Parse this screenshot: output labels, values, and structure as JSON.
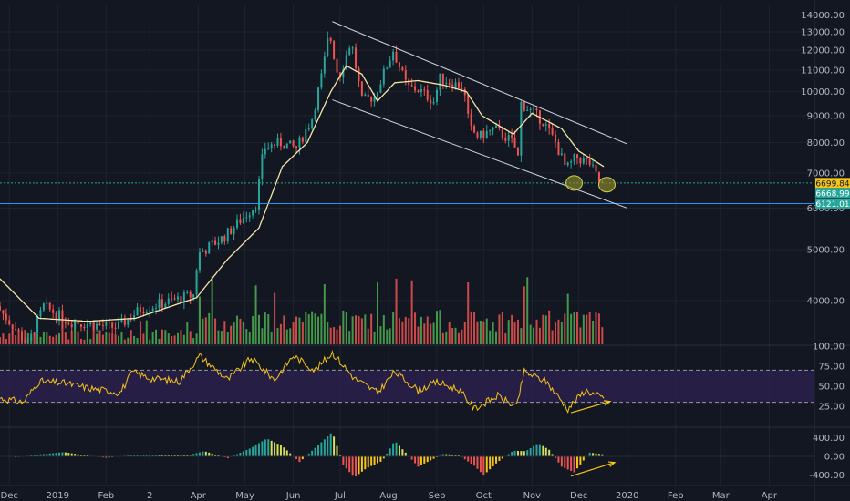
{
  "chart_data": [
    {
      "type": "candlestick",
      "panel": "price",
      "y_scale": "log",
      "ylim": [
        3300,
        14600
      ],
      "xlim": [
        "2018-11-25",
        "2020-04-30"
      ],
      "yticks": [
        4000,
        5000,
        6000,
        7000,
        8000,
        9000,
        10000,
        11000,
        12000,
        13000,
        14000
      ],
      "ytick_labels": [
        "4000.00",
        "5000.00",
        "6000.00",
        "7000.00",
        "8000.00",
        "9000.00",
        "10000.00",
        "11000.00",
        "12000.00",
        "13000.00",
        "14000.00"
      ],
      "x_tick_labels": [
        {
          "date": "2018-12-01",
          "label": "Dec"
        },
        {
          "date": "2019-01-01",
          "label": "2019"
        },
        {
          "date": "2019-02-01",
          "label": "Feb"
        },
        {
          "date": "2019-03-01",
          "label": "2"
        },
        {
          "date": "2019-04-01",
          "label": "Apr"
        },
        {
          "date": "2019-05-01",
          "label": "May"
        },
        {
          "date": "2019-06-01",
          "label": "Jun"
        },
        {
          "date": "2019-07-01",
          "label": "Jul"
        },
        {
          "date": "2019-08-01",
          "label": "Aug"
        },
        {
          "date": "2019-09-01",
          "label": "Sep"
        },
        {
          "date": "2019-10-01",
          "label": "Oct"
        },
        {
          "date": "2019-11-01",
          "label": "Nov"
        },
        {
          "date": "2019-12-01",
          "label": "Dec"
        },
        {
          "date": "2020-01-01",
          "label": "2020"
        },
        {
          "date": "2020-02-01",
          "label": "Feb"
        },
        {
          "date": "2020-03-01",
          "label": "Mar"
        },
        {
          "date": "2020-04-01",
          "label": "Apr"
        }
      ],
      "close_path": [
        [
          "2018-11-25",
          3900
        ],
        [
          "2018-12-15",
          3300
        ],
        [
          "2018-12-25",
          3900
        ],
        [
          "2019-01-10",
          3650
        ],
        [
          "2019-02-10",
          3550
        ],
        [
          "2019-02-25",
          3850
        ],
        [
          "2019-03-31",
          4100
        ],
        [
          "2019-04-03",
          4900
        ],
        [
          "2019-04-20",
          5300
        ],
        [
          "2019-05-10",
          6100
        ],
        [
          "2019-05-15",
          7800
        ],
        [
          "2019-05-25",
          8000
        ],
        [
          "2019-06-05",
          7800
        ],
        [
          "2019-06-15",
          8900
        ],
        [
          "2019-06-22",
          11000
        ],
        [
          "2019-06-26",
          13000
        ],
        [
          "2019-07-02",
          10600
        ],
        [
          "2019-07-10",
          12500
        ],
        [
          "2019-07-17",
          9600
        ],
        [
          "2019-07-25",
          9800
        ],
        [
          "2019-08-06",
          12000
        ],
        [
          "2019-08-15",
          10200
        ],
        [
          "2019-08-22",
          10100
        ],
        [
          "2019-09-01",
          9600
        ],
        [
          "2019-09-05",
          10600
        ],
        [
          "2019-09-20",
          10200
        ],
        [
          "2019-09-24",
          8500
        ],
        [
          "2019-09-30",
          8200
        ],
        [
          "2019-10-10",
          8500
        ],
        [
          "2019-10-22",
          8000
        ],
        [
          "2019-10-25",
          7500
        ],
        [
          "2019-10-27",
          9500
        ],
        [
          "2019-11-10",
          8800
        ],
        [
          "2019-11-18",
          8000
        ],
        [
          "2019-11-25",
          7100
        ],
        [
          "2019-12-01",
          7500
        ],
        [
          "2019-12-10",
          7300
        ],
        [
          "2019-12-17",
          6650
        ]
      ],
      "ma_path": [
        [
          "2018-11-25",
          4400
        ],
        [
          "2018-12-20",
          3700
        ],
        [
          "2019-01-20",
          3650
        ],
        [
          "2019-02-20",
          3700
        ],
        [
          "2019-03-31",
          4050
        ],
        [
          "2019-04-20",
          4800
        ],
        [
          "2019-05-10",
          5500
        ],
        [
          "2019-05-25",
          7200
        ],
        [
          "2019-06-10",
          8000
        ],
        [
          "2019-06-25",
          10000
        ],
        [
          "2019-07-05",
          11200
        ],
        [
          "2019-07-15",
          10800
        ],
        [
          "2019-07-25",
          9600
        ],
        [
          "2019-08-05",
          10400
        ],
        [
          "2019-08-20",
          10500
        ],
        [
          "2019-09-05",
          10300
        ],
        [
          "2019-09-20",
          10000
        ],
        [
          "2019-09-30",
          9000
        ],
        [
          "2019-10-20",
          8300
        ],
        [
          "2019-11-01",
          9100
        ],
        [
          "2019-11-20",
          8500
        ],
        [
          "2019-12-01",
          7700
        ],
        [
          "2019-12-17",
          7200
        ]
      ],
      "trendlines": [
        {
          "from": [
            "2019-06-26",
            13600
          ],
          "to": [
            "2020-01-01",
            7950
          ]
        },
        {
          "from": [
            "2019-06-26",
            9650
          ],
          "to": [
            "2020-01-01",
            6000
          ]
        }
      ],
      "horizontal_lines": [
        {
          "price": 6699.84,
          "color": "#26a69a",
          "dashed": true
        },
        {
          "price": 6121.01,
          "color": "#2196f3",
          "dashed": false
        }
      ],
      "price_labels": [
        {
          "text": "6699.84",
          "bg": "#f5c518",
          "fg": "#131722"
        },
        {
          "text": "6668.99",
          "bg": "#26a69a",
          "fg": "#ffffff"
        },
        {
          "text": "6121.01",
          "bg": "#26a69a",
          "fg": "#ffffff"
        }
      ],
      "circles": [
        {
          "date": "2019-11-28",
          "price": 6700
        },
        {
          "date": "2019-12-19",
          "price": 6650
        }
      ],
      "colors": {
        "up": "#26a69a",
        "down": "#ef5350",
        "ma": "#f5e6a8",
        "trend": "#d1d4dc",
        "vol_up": "#4caf50",
        "vol_down": "#ef5350"
      }
    },
    {
      "type": "line",
      "panel": "rsi",
      "ylim": [
        0,
        100
      ],
      "yticks": [
        25,
        50,
        75,
        100
      ],
      "ytick_labels": [
        "25.00",
        "50.00",
        "75.00",
        "100.00"
      ],
      "bands": [
        30,
        70
      ],
      "values": [
        [
          "2018-11-25",
          35
        ],
        [
          "2018-12-10",
          30
        ],
        [
          "2018-12-20",
          56
        ],
        [
          "2019-01-05",
          54
        ],
        [
          "2019-01-20",
          48
        ],
        [
          "2019-02-10",
          42
        ],
        [
          "2019-02-18",
          68
        ],
        [
          "2019-03-01",
          60
        ],
        [
          "2019-03-20",
          56
        ],
        [
          "2019-04-02",
          88
        ],
        [
          "2019-04-20",
          58
        ],
        [
          "2019-05-05",
          85
        ],
        [
          "2019-05-20",
          58
        ],
        [
          "2019-06-01",
          88
        ],
        [
          "2019-06-15",
          70
        ],
        [
          "2019-06-26",
          92
        ],
        [
          "2019-07-10",
          60
        ],
        [
          "2019-07-25",
          42
        ],
        [
          "2019-08-05",
          68
        ],
        [
          "2019-08-20",
          45
        ],
        [
          "2019-09-01",
          55
        ],
        [
          "2019-09-15",
          46
        ],
        [
          "2019-09-25",
          22
        ],
        [
          "2019-10-10",
          38
        ],
        [
          "2019-10-22",
          24
        ],
        [
          "2019-10-27",
          68
        ],
        [
          "2019-11-10",
          56
        ],
        [
          "2019-11-24",
          22
        ],
        [
          "2019-12-05",
          45
        ],
        [
          "2019-12-17",
          35
        ]
      ],
      "divergence_arrow": {
        "from": [
          "2019-11-26",
          17
        ],
        "to": [
          "2019-12-21",
          31
        ]
      },
      "colors": {
        "line": "#f5c518",
        "band_fill": "#2a1f4a",
        "band_line": "#9598a1"
      }
    },
    {
      "type": "histogram",
      "panel": "momentum",
      "ylim": [
        -600,
        600
      ],
      "yticks": [
        -400,
        0,
        400
      ],
      "ytick_labels": [
        "-400.00",
        "0.00",
        "400.00"
      ],
      "bars": [
        [
          "2018-12-05",
          -20
        ],
        [
          "2018-12-20",
          40
        ],
        [
          "2019-01-05",
          90
        ],
        [
          "2019-01-15",
          40
        ],
        [
          "2019-02-01",
          -30
        ],
        [
          "2019-02-15",
          20
        ],
        [
          "2019-03-05",
          30
        ],
        [
          "2019-03-25",
          20
        ],
        [
          "2019-04-05",
          110
        ],
        [
          "2019-04-20",
          -40
        ],
        [
          "2019-05-05",
          180
        ],
        [
          "2019-05-15",
          380
        ],
        [
          "2019-05-25",
          220
        ],
        [
          "2019-06-05",
          -120
        ],
        [
          "2019-06-20",
          330
        ],
        [
          "2019-06-26",
          520
        ],
        [
          "2019-07-03",
          -180
        ],
        [
          "2019-07-10",
          -450
        ],
        [
          "2019-07-18",
          -250
        ],
        [
          "2019-07-28",
          -100
        ],
        [
          "2019-08-05",
          330
        ],
        [
          "2019-08-12",
          80
        ],
        [
          "2019-08-20",
          -220
        ],
        [
          "2019-09-05",
          50
        ],
        [
          "2019-09-15",
          30
        ],
        [
          "2019-09-25",
          -200
        ],
        [
          "2019-10-01",
          -400
        ],
        [
          "2019-10-10",
          -120
        ],
        [
          "2019-10-20",
          120
        ],
        [
          "2019-10-28",
          110
        ],
        [
          "2019-11-05",
          280
        ],
        [
          "2019-11-12",
          140
        ],
        [
          "2019-11-20",
          -220
        ],
        [
          "2019-11-28",
          -340
        ],
        [
          "2019-12-08",
          80
        ],
        [
          "2019-12-17",
          40
        ]
      ],
      "divergence_arrow": {
        "from": [
          "2019-11-26",
          -420
        ],
        "to": [
          "2019-12-24",
          -130
        ]
      },
      "colors": {
        "pos_strong": "#26a69a",
        "pos_weak": "#d4e157",
        "neg_strong": "#ef5350",
        "neg_weak": "#f5c518"
      }
    }
  ]
}
